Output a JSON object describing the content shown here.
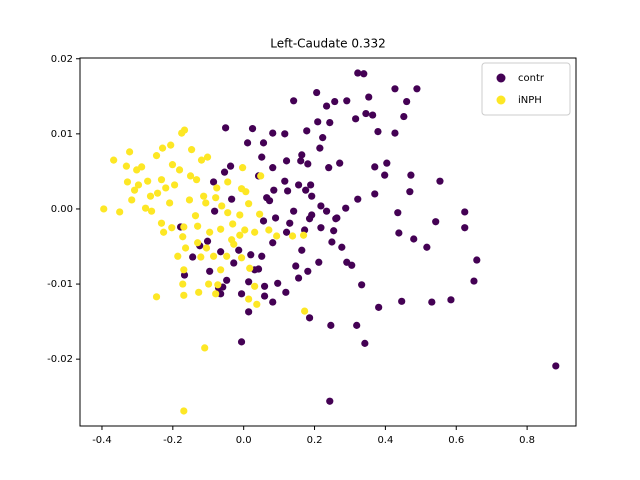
{
  "chart_data": {
    "type": "scatter",
    "title": "Left-Caudate 0.332",
    "xlim": [
      -0.462,
      0.938
    ],
    "ylim": [
      -0.0289,
      0.0201
    ],
    "xticks": [
      -0.4,
      -0.2,
      {
        "value": 0,
        "label": "0.0"
      },
      0.2,
      0.4,
      0.6,
      0.8
    ],
    "yticks": [
      -0.02,
      -0.01,
      {
        "value": 0,
        "label": "0.00"
      },
      0.01,
      0.02
    ],
    "legend": "upper right",
    "series": [
      {
        "name": "contr",
        "color": "#440154",
        "x": [
          0.339,
          0.322,
          0.141,
          0.206,
          0.257,
          0.234,
          0.291,
          0.353,
          0.427,
          0.46,
          0.489,
          0.364,
          0.316,
          0.379,
          0.452,
          0.427,
          0.345,
          0.243,
          0.209,
          0.178,
          0.223,
          0.215,
          0.164,
          0.161,
          0.116,
          0.082,
          0.025,
          -0.051,
          0.011,
          0.056,
          0.121,
          0.051,
          0.082,
          0.042,
          -0.037,
          -0.054,
          0.181,
          0.24,
          0.271,
          0.404,
          0.37,
          0.398,
          0.37,
          0.469,
          0.472,
          0.554,
          0.435,
          0.542,
          0.48,
          0.517,
          0.438,
          0.322,
          0.263,
          0.218,
          0.172,
          0.192,
          0.254,
          0.277,
          0.291,
          0.249,
          0.186,
          0.13,
          0.09,
          0.056,
          0.082,
          0.051,
          0.02,
          0.042,
          -0.014,
          -0.065,
          -0.028,
          -0.071,
          -0.102,
          -0.178,
          -0.167,
          -0.144,
          -0.124,
          -0.096,
          -0.048,
          0.059,
          0.096,
          0.119,
          0.155,
          0.181,
          0.147,
          0.059,
          0.082,
          -0.006,
          0.014,
          -0.065,
          -0.059,
          0.014,
          0.031,
          0.186,
          0.246,
          0.333,
          0.381,
          0.446,
          0.531,
          0.585,
          0.624,
          0.624,
          0.658,
          0.65,
          0.881,
          0.243,
          0.319,
          0.342,
          -0.006,
          0.212,
          0.305,
          0.164,
          0.121,
          0.124,
          0.189,
          0.192,
          0.141,
          0.085,
          0.065,
          -0.085,
          -0.082,
          -0.034,
          0.073,
          0.116,
          0.155,
          0.175,
          0.218,
          0.234,
          0.26,
          0.288
        ],
        "y": [
          0.018,
          0.0181,
          0.0144,
          0.0155,
          0.0143,
          0.0137,
          0.0144,
          0.0149,
          0.016,
          0.0143,
          0.016,
          0.0125,
          0.012,
          0.0103,
          0.0123,
          0.0101,
          0.0127,
          0.0115,
          0.0116,
          0.0104,
          0.0095,
          0.0081,
          0.0072,
          0.0064,
          0.01,
          0.0101,
          0.0107,
          0.0108,
          0.0088,
          0.0088,
          0.0064,
          0.0069,
          0.0055,
          0.0044,
          0.0057,
          0.0049,
          0.006,
          0.0055,
          0.0061,
          0.0061,
          0.0056,
          0.0045,
          0.002,
          0.0023,
          0.0045,
          0.0037,
          -0.0005,
          -0.0017,
          -0.004,
          -0.0051,
          -0.0032,
          0.0013,
          -0.0012,
          -0.0025,
          -0.0028,
          -0.0008,
          -0.0029,
          -0.0051,
          -0.0071,
          -0.0044,
          -0.0013,
          -0.0019,
          -0.0012,
          -0.0016,
          -0.0045,
          -0.0063,
          -0.0061,
          -0.008,
          -0.0055,
          -0.0057,
          -0.0072,
          -0.0105,
          -0.0043,
          -0.0024,
          -0.0088,
          -0.0064,
          -0.0049,
          -0.0083,
          -0.0095,
          -0.0103,
          -0.0099,
          -0.0111,
          -0.0092,
          -0.0083,
          -0.0076,
          -0.0116,
          -0.0124,
          -0.0113,
          -0.0137,
          -0.0113,
          -0.0104,
          -0.0097,
          -0.0081,
          -0.0145,
          -0.0155,
          -0.0101,
          -0.0131,
          -0.0123,
          -0.0124,
          -0.0121,
          -0.0004,
          -0.0025,
          -0.0068,
          -0.0096,
          -0.0209,
          -0.0256,
          -0.0155,
          -0.0179,
          -0.0177,
          -0.0071,
          -0.0075,
          -0.0055,
          -0.0031,
          0.0024,
          0.0032,
          0.0017,
          -0.0003,
          0.0025,
          0.0015,
          0.0036,
          -0.0003,
          0.0013,
          0.0011,
          0.0037,
          0.0032,
          0.0025,
          0.0004,
          -0.0003,
          -0.0013,
          0.0001
        ]
      },
      {
        "name": "iNPH",
        "color": "#fde725",
        "x": [
          -0.395,
          -0.367,
          -0.35,
          -0.331,
          -0.322,
          -0.288,
          -0.297,
          -0.277,
          -0.263,
          -0.246,
          -0.229,
          -0.206,
          -0.175,
          -0.167,
          -0.147,
          -0.119,
          -0.102,
          -0.15,
          -0.181,
          -0.195,
          -0.22,
          -0.243,
          -0.26,
          -0.232,
          -0.203,
          -0.172,
          -0.169,
          -0.136,
          -0.107,
          -0.079,
          -0.062,
          -0.045,
          -0.031,
          -0.011,
          0.006,
          0.014,
          0.045,
          0.071,
          0.093,
          0.138,
          0.169,
          0.031,
          0.003,
          -0.011,
          -0.028,
          -0.048,
          -0.085,
          -0.105,
          -0.13,
          -0.164,
          -0.186,
          -0.169,
          -0.172,
          -0.127,
          -0.099,
          -0.065,
          -0.121,
          -0.13,
          -0.096,
          -0.065,
          0.017,
          0.031,
          0.014,
          0.037,
          -0.006,
          -0.034,
          0.172,
          -0.246,
          -0.169,
          -0.11,
          -0.079,
          -0.073,
          -0.169,
          -0.226,
          -0.308,
          -0.328,
          -0.316,
          -0.271,
          -0.201,
          -0.133,
          -0.076,
          -0.045,
          -0.003,
          0.048,
          -0.006,
          -0.232,
          -0.153,
          -0.113,
          -0.209,
          -0.302
        ],
        "y": [
          0,
          0.0065,
          -0.0004,
          0.0057,
          0.0076,
          0.0056,
          0.0032,
          0.0001,
          0.0017,
          0.0071,
          0.0081,
          0.0085,
          0.0101,
          0.0105,
          0.0079,
          0.0065,
          0.0069,
          0.0044,
          0.0052,
          0.0032,
          0.0028,
          0.0021,
          -0.0003,
          -0.0019,
          -0.0025,
          -0.0037,
          -0.0024,
          -0.0009,
          0.0008,
          0.0015,
          0.0004,
          -0.0005,
          -0.002,
          -0.0008,
          0.0023,
          0.0007,
          -0.0007,
          -0.0028,
          -0.0036,
          -0.0036,
          -0.0035,
          -0.0031,
          -0.0028,
          -0.0035,
          -0.0047,
          -0.0063,
          -0.0063,
          -0.0052,
          -0.0045,
          -0.0052,
          -0.0063,
          -0.0081,
          -0.01,
          -0.0111,
          -0.01,
          -0.0081,
          -0.0064,
          -0.0023,
          -0.0031,
          -0.0027,
          -0.0079,
          -0.0103,
          -0.012,
          -0.0127,
          -0.0065,
          -0.0041,
          -0.0136,
          -0.0117,
          -0.0269,
          -0.0185,
          -0.0113,
          -0.0101,
          -0.0115,
          -0.0031,
          0.0025,
          0.0036,
          0.0012,
          0.0037,
          0.0059,
          0.0039,
          0.0028,
          0.0036,
          0.0055,
          0.0044,
          0.0027,
          0.0039,
          0.0012,
          0.0017,
          0.0008,
          0.0052
        ]
      }
    ]
  }
}
